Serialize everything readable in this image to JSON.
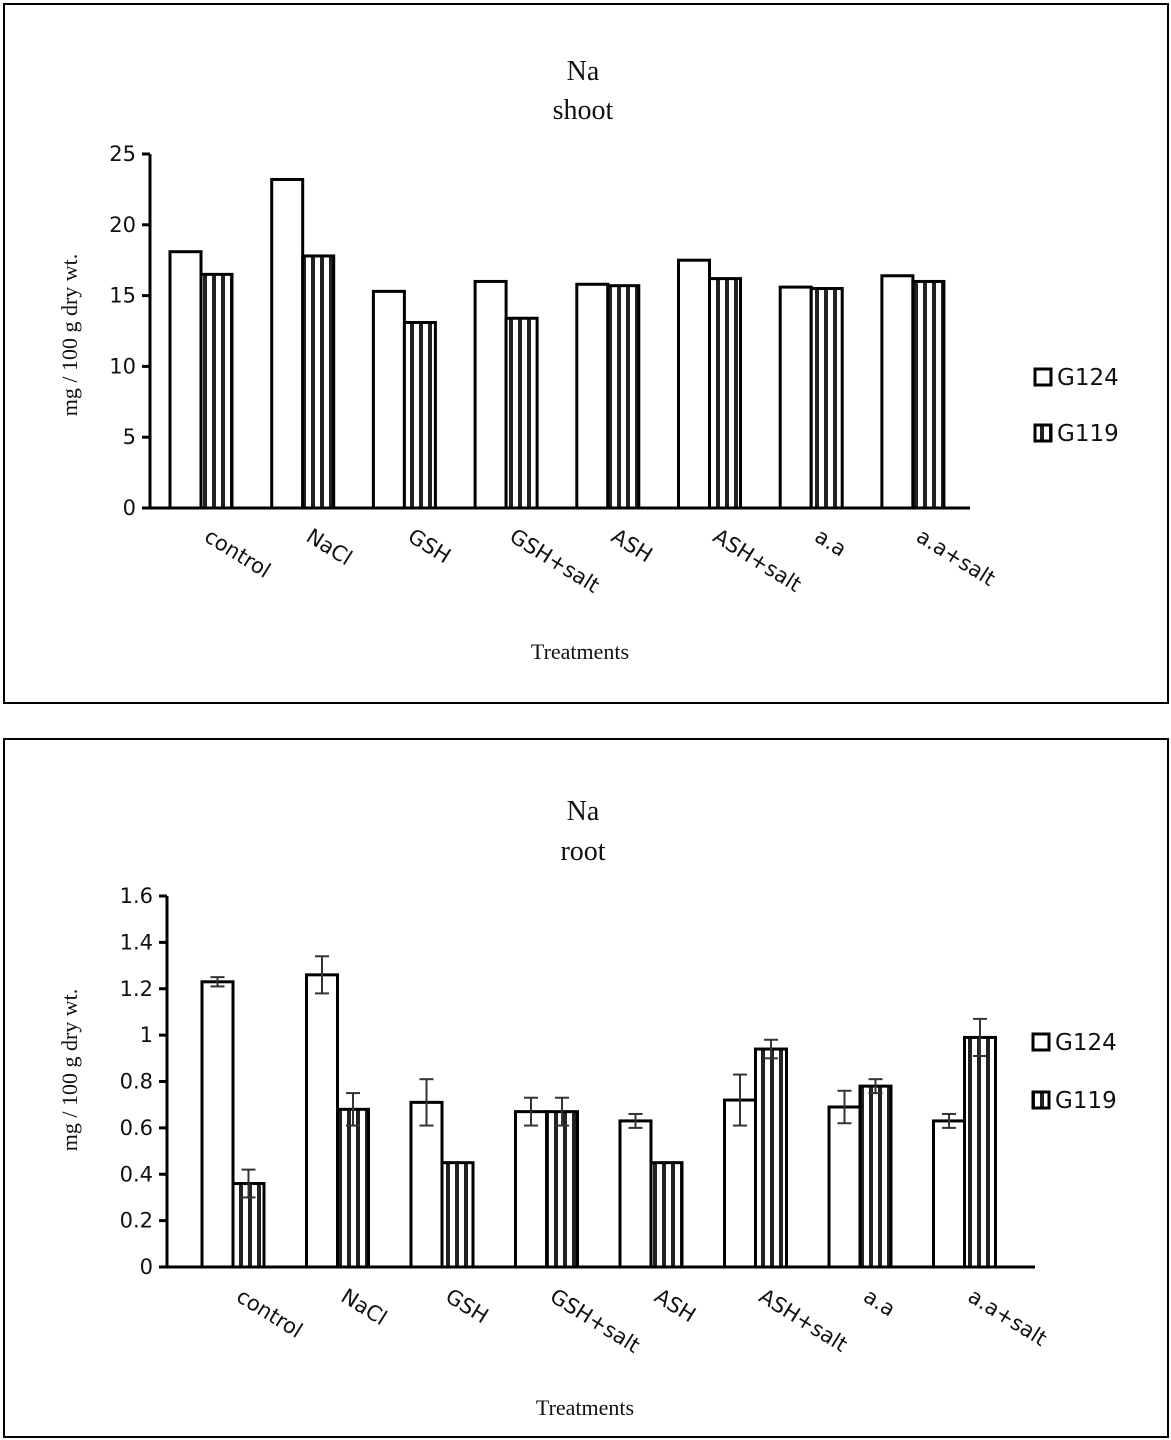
{
  "chart_data": [
    {
      "type": "bar",
      "title": "Na",
      "subtitle": "shoot",
      "xlabel": "Treatments",
      "ylabel": "mg / 100 g dry wt.",
      "ylim": [
        0,
        25
      ],
      "yticks": [
        "0",
        "5",
        "10",
        "15",
        "20",
        "25"
      ],
      "ytick_values": [
        0,
        5,
        10,
        15,
        20,
        25
      ],
      "grid": false,
      "legend_position": "right",
      "categories": [
        "control",
        "NaCl",
        "GSH",
        "GSH+salt",
        "ASH",
        "ASH+salt",
        "a.a",
        "a.a+salt"
      ],
      "series": [
        {
          "name": "G124",
          "pattern": "white",
          "values": [
            18.1,
            23.2,
            15.3,
            16.0,
            15.8,
            17.5,
            15.6,
            16.4
          ]
        },
        {
          "name": "G119",
          "pattern": "vertical-stripes",
          "values": [
            16.5,
            17.8,
            13.1,
            13.4,
            15.7,
            16.2,
            15.5,
            16.0
          ]
        }
      ]
    },
    {
      "type": "bar",
      "title": "Na",
      "subtitle": "root",
      "xlabel": "Treatments",
      "ylabel": "mg / 100 g dry wt.",
      "ylim": [
        0,
        1.6
      ],
      "yticks": [
        "0",
        "0.2",
        "0.4",
        "0.6",
        "0.8",
        "1",
        "1.2",
        "1.4",
        "1.6"
      ],
      "ytick_values": [
        0,
        0.2,
        0.4,
        0.6,
        0.8,
        1.0,
        1.2,
        1.4,
        1.6
      ],
      "grid": false,
      "legend_position": "right",
      "categories": [
        "control",
        "NaCl",
        "GSH",
        "GSH+salt",
        "ASH",
        "ASH+salt",
        "a.a",
        "a.a+salt"
      ],
      "series": [
        {
          "name": "G124",
          "pattern": "white",
          "values": [
            1.23,
            1.26,
            0.71,
            0.67,
            0.63,
            0.72,
            0.69,
            0.63
          ],
          "errors": [
            0.02,
            0.08,
            0.1,
            0.06,
            0.03,
            0.11,
            0.07,
            0.03
          ]
        },
        {
          "name": "G119",
          "pattern": "vertical-stripes",
          "values": [
            0.36,
            0.68,
            0.45,
            0.67,
            0.45,
            0.94,
            0.78,
            0.99
          ],
          "errors": [
            0.06,
            0.07,
            0,
            0.06,
            0,
            0.04,
            0.03,
            0.08
          ]
        }
      ]
    }
  ],
  "colors": {
    "ink": "#000000",
    "background": "#ffffff",
    "stripe": "#222222"
  }
}
